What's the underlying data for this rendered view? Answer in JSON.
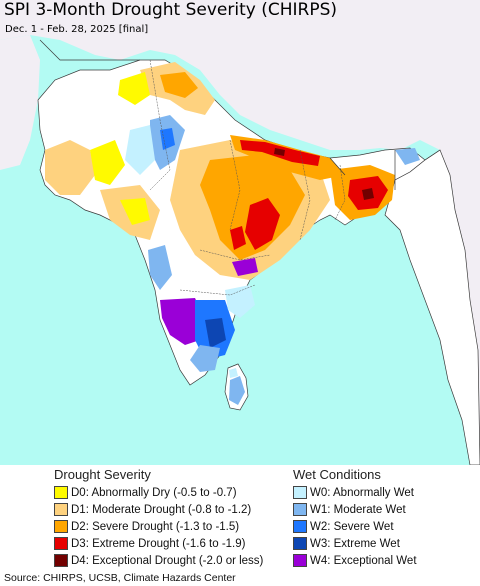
{
  "map": {
    "title": "SPI 3-Month Drought Severity (CHIRPS)",
    "subtitle": "Dec. 1 - Feb. 28, 2025 [final]",
    "colors": {
      "ocean": "#b3fbf3",
      "land_outside": "#f2eef4",
      "border": "#3a3a3a",
      "D0": "#fffa00",
      "D1": "#fed27f",
      "D2": "#ffa600",
      "D3": "#e60000",
      "D4": "#720000",
      "W0": "#c4f1ff",
      "W1": "#7fb6f0",
      "W2": "#1e77ff",
      "W3": "#0d46b3",
      "W4": "#9a00d7"
    }
  },
  "legend": {
    "drought_heading": "Drought Severity",
    "wet_heading": "Wet Conditions",
    "drought_items": [
      {
        "code": "D0",
        "label": "D0: Abnormally Dry (-0.5 to -0.7)",
        "color": "#fffa00"
      },
      {
        "code": "D1",
        "label": "D1: Moderate Drought (-0.8 to -1.2)",
        "color": "#fed27f"
      },
      {
        "code": "D2",
        "label": "D2: Severe Drought (-1.3 to -1.5)",
        "color": "#ffa600"
      },
      {
        "code": "D3",
        "label": "D3: Extreme Drought (-1.6 to -1.9)",
        "color": "#e60000"
      },
      {
        "code": "D4",
        "label": "D4: Exceptional Drought (-2.0 or less)",
        "color": "#720000"
      }
    ],
    "wet_items": [
      {
        "code": "W0",
        "label": "W0: Abnormally Wet",
        "color": "#c4f1ff"
      },
      {
        "code": "W1",
        "label": "W1: Moderate Wet",
        "color": "#7fb6f0"
      },
      {
        "code": "W2",
        "label": "W2: Severe Wet",
        "color": "#1e77ff"
      },
      {
        "code": "W3",
        "label": "W3: Extreme Wet",
        "color": "#0d46b3"
      },
      {
        "code": "W4",
        "label": "W4: Exceptional Wet",
        "color": "#9a00d7"
      }
    ]
  },
  "footer": {
    "source": "Source: CHIRPS, UCSB, Climate Hazards Center"
  }
}
